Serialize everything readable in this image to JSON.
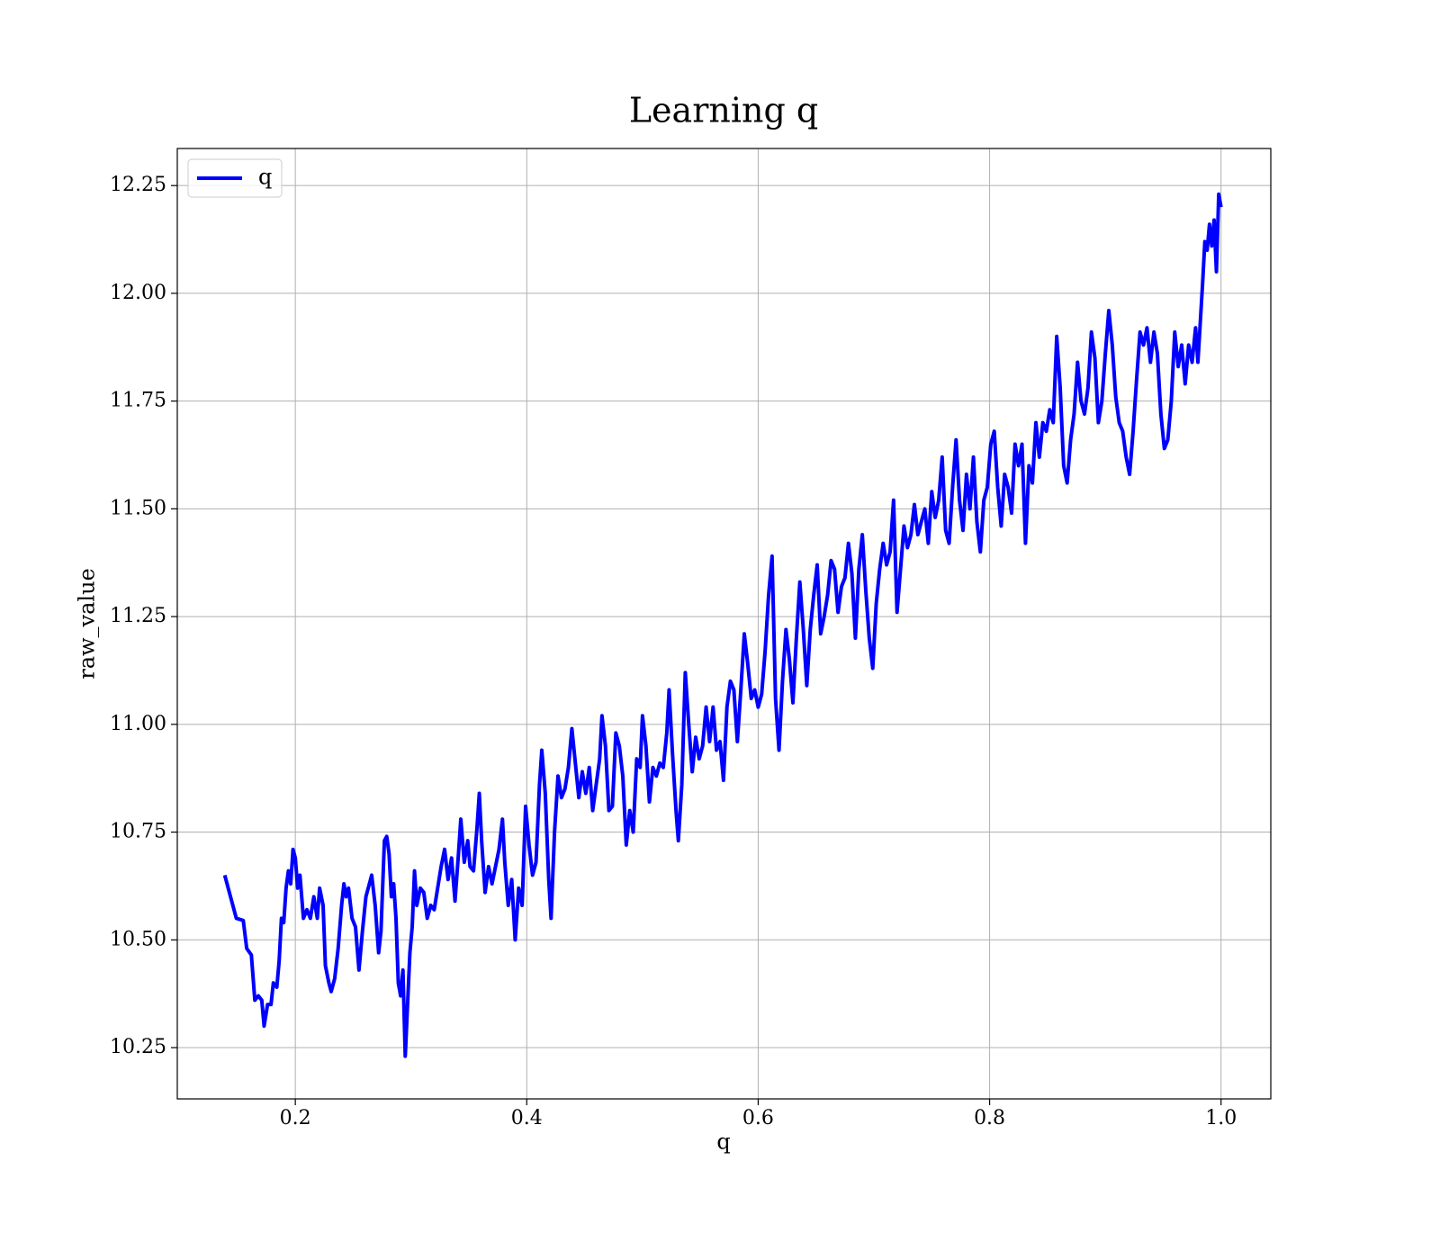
{
  "chart_data": {
    "type": "line",
    "title": "Learning q",
    "xlabel": "q",
    "ylabel": "raw_value",
    "legend": "upper left",
    "grid": true,
    "xlim": [
      0.098,
      1.043
    ],
    "ylim": [
      10.131,
      12.336
    ],
    "xticks": [
      0.2,
      0.4,
      0.6,
      0.8,
      {
        "value": 1,
        "label": "1.0"
      }
    ],
    "yticks": [
      {
        "value": 10.25,
        "label": "10.25"
      },
      {
        "value": 10.5,
        "label": "10.50"
      },
      10.75,
      {
        "value": 11,
        "label": "11.00"
      },
      11.25,
      {
        "value": 11.5,
        "label": "11.50"
      },
      11.75,
      {
        "value": 12,
        "label": "12.00"
      },
      12.25
    ],
    "x": [
      0.139,
      0.149,
      0.155,
      0.158,
      0.162,
      0.165,
      0.168,
      0.171,
      0.173,
      0.176,
      0.179,
      0.181,
      0.184,
      0.186,
      0.188,
      0.19,
      0.192,
      0.194,
      0.196,
      0.198,
      0.2,
      0.202,
      0.204,
      0.207,
      0.21,
      0.213,
      0.216,
      0.219,
      0.221,
      0.224,
      0.226,
      0.229,
      0.231,
      0.234,
      0.237,
      0.24,
      0.242,
      0.244,
      0.246,
      0.249,
      0.252,
      0.255,
      0.258,
      0.261,
      0.264,
      0.266,
      0.269,
      0.272,
      0.274,
      0.277,
      0.279,
      0.281,
      0.283,
      0.285,
      0.287,
      0.289,
      0.291,
      0.293,
      0.295,
      0.297,
      0.299,
      0.301,
      0.303,
      0.305,
      0.308,
      0.311,
      0.314,
      0.317,
      0.32,
      0.323,
      0.326,
      0.329,
      0.332,
      0.335,
      0.338,
      0.341,
      0.343,
      0.346,
      0.349,
      0.351,
      0.354,
      0.357,
      0.359,
      0.361,
      0.364,
      0.367,
      0.37,
      0.373,
      0.376,
      0.379,
      0.381,
      0.384,
      0.387,
      0.39,
      0.393,
      0.396,
      0.399,
      0.402,
      0.405,
      0.408,
      0.411,
      0.413,
      0.416,
      0.419,
      0.421,
      0.424,
      0.427,
      0.43,
      0.433,
      0.436,
      0.439,
      0.442,
      0.445,
      0.448,
      0.451,
      0.454,
      0.457,
      0.46,
      0.463,
      0.465,
      0.468,
      0.471,
      0.474,
      0.477,
      0.48,
      0.483,
      0.486,
      0.489,
      0.492,
      0.495,
      0.498,
      0.5,
      0.503,
      0.506,
      0.509,
      0.512,
      0.515,
      0.518,
      0.521,
      0.523,
      0.526,
      0.529,
      0.531,
      0.534,
      0.537,
      0.54,
      0.543,
      0.546,
      0.549,
      0.552,
      0.555,
      0.558,
      0.561,
      0.564,
      0.567,
      0.57,
      0.573,
      0.576,
      0.579,
      0.582,
      0.585,
      0.588,
      0.591,
      0.594,
      0.597,
      0.6,
      0.603,
      0.606,
      0.609,
      0.612,
      0.615,
      0.618,
      0.621,
      0.624,
      0.627,
      0.63,
      0.633,
      0.636,
      0.639,
      0.642,
      0.645,
      0.648,
      0.651,
      0.654,
      0.657,
      0.66,
      0.663,
      0.666,
      0.669,
      0.672,
      0.675,
      0.678,
      0.681,
      0.684,
      0.687,
      0.69,
      0.693,
      0.696,
      0.699,
      0.702,
      0.705,
      0.708,
      0.711,
      0.714,
      0.717,
      0.72,
      0.723,
      0.726,
      0.729,
      0.732,
      0.735,
      0.738,
      0.741,
      0.744,
      0.747,
      0.75,
      0.753,
      0.756,
      0.759,
      0.762,
      0.765,
      0.768,
      0.771,
      0.774,
      0.777,
      0.78,
      0.783,
      0.786,
      0.789,
      0.792,
      0.795,
      0.798,
      0.801,
      0.804,
      0.807,
      0.81,
      0.813,
      0.816,
      0.819,
      0.822,
      0.825,
      0.828,
      0.831,
      0.834,
      0.837,
      0.84,
      0.843,
      0.846,
      0.849,
      0.852,
      0.855,
      0.858,
      0.861,
      0.864,
      0.867,
      0.87,
      0.873,
      0.876,
      0.879,
      0.882,
      0.885,
      0.888,
      0.891,
      0.894,
      0.897,
      0.9,
      0.903,
      0.906,
      0.909,
      0.912,
      0.915,
      0.918,
      0.921,
      0.924,
      0.927,
      0.93,
      0.933,
      0.936,
      0.939,
      0.942,
      0.945,
      0.948,
      0.951,
      0.954,
      0.957,
      0.96,
      0.963,
      0.966,
      0.969,
      0.972,
      0.975,
      0.978,
      0.98,
      0.982,
      0.984,
      0.986,
      0.988,
      0.99,
      0.992,
      0.994,
      0.996,
      0.998,
      1.0
    ],
    "series": [
      {
        "name": "q",
        "color": "#0000ff",
        "values": [
          10.65,
          10.55,
          10.545,
          10.48,
          10.465,
          10.36,
          10.37,
          10.36,
          10.3,
          10.35,
          10.35,
          10.4,
          10.39,
          10.45,
          10.55,
          10.54,
          10.62,
          10.66,
          10.63,
          10.71,
          10.69,
          10.62,
          10.65,
          10.55,
          10.57,
          10.55,
          10.6,
          10.55,
          10.62,
          10.58,
          10.44,
          10.4,
          10.38,
          10.41,
          10.48,
          10.58,
          10.63,
          10.6,
          10.62,
          10.55,
          10.53,
          10.43,
          10.52,
          10.6,
          10.63,
          10.65,
          10.58,
          10.47,
          10.52,
          10.73,
          10.74,
          10.7,
          10.6,
          10.63,
          10.55,
          10.4,
          10.37,
          10.43,
          10.23,
          10.35,
          10.47,
          10.53,
          10.66,
          10.58,
          10.62,
          10.61,
          10.55,
          10.58,
          10.57,
          10.62,
          10.67,
          10.71,
          10.64,
          10.69,
          10.59,
          10.7,
          10.78,
          10.68,
          10.73,
          10.67,
          10.66,
          10.76,
          10.84,
          10.73,
          10.61,
          10.67,
          10.63,
          10.67,
          10.71,
          10.78,
          10.68,
          10.58,
          10.64,
          10.5,
          10.62,
          10.58,
          10.81,
          10.72,
          10.65,
          10.68,
          10.86,
          10.94,
          10.84,
          10.64,
          10.55,
          10.75,
          10.88,
          10.83,
          10.85,
          10.9,
          10.99,
          10.91,
          10.83,
          10.89,
          10.84,
          10.9,
          10.8,
          10.86,
          10.92,
          11.02,
          10.95,
          10.8,
          10.81,
          10.98,
          10.95,
          10.88,
          10.72,
          10.8,
          10.75,
          10.92,
          10.9,
          11.02,
          10.95,
          10.82,
          10.9,
          10.88,
          10.91,
          10.9,
          10.98,
          11.08,
          10.93,
          10.8,
          10.73,
          10.86,
          11.12,
          11.0,
          10.89,
          10.97,
          10.92,
          10.95,
          11.04,
          10.96,
          11.04,
          10.94,
          10.96,
          10.87,
          11.04,
          11.1,
          11.08,
          10.96,
          11.08,
          11.21,
          11.14,
          11.06,
          11.08,
          11.04,
          11.07,
          11.17,
          11.3,
          11.39,
          11.06,
          10.94,
          11.1,
          11.22,
          11.15,
          11.05,
          11.2,
          11.33,
          11.22,
          11.09,
          11.22,
          11.3,
          11.37,
          11.21,
          11.25,
          11.3,
          11.38,
          11.36,
          11.26,
          11.32,
          11.34,
          11.42,
          11.35,
          11.2,
          11.36,
          11.44,
          11.31,
          11.2,
          11.13,
          11.28,
          11.36,
          11.42,
          11.37,
          11.4,
          11.52,
          11.26,
          11.36,
          11.46,
          11.41,
          11.44,
          11.51,
          11.44,
          11.47,
          11.5,
          11.42,
          11.54,
          11.48,
          11.52,
          11.62,
          11.45,
          11.42,
          11.55,
          11.66,
          11.52,
          11.45,
          11.58,
          11.5,
          11.62,
          11.47,
          11.4,
          11.52,
          11.55,
          11.65,
          11.68,
          11.55,
          11.46,
          11.58,
          11.55,
          11.49,
          11.65,
          11.6,
          11.65,
          11.42,
          11.6,
          11.56,
          11.7,
          11.62,
          11.7,
          11.68,
          11.73,
          11.7,
          11.9,
          11.78,
          11.6,
          11.56,
          11.66,
          11.72,
          11.84,
          11.75,
          11.72,
          11.78,
          11.91,
          11.85,
          11.7,
          11.75,
          11.86,
          11.96,
          11.88,
          11.76,
          11.7,
          11.68,
          11.62,
          11.58,
          11.68,
          11.8,
          11.91,
          11.88,
          11.92,
          11.84,
          11.91,
          11.86,
          11.72,
          11.64,
          11.66,
          11.75,
          11.91,
          11.83,
          11.88,
          11.79,
          11.88,
          11.84,
          11.92,
          11.84,
          11.93,
          12.02,
          12.12,
          12.1,
          12.16,
          12.11,
          12.17,
          12.05,
          12.23,
          12.2
        ]
      }
    ]
  }
}
